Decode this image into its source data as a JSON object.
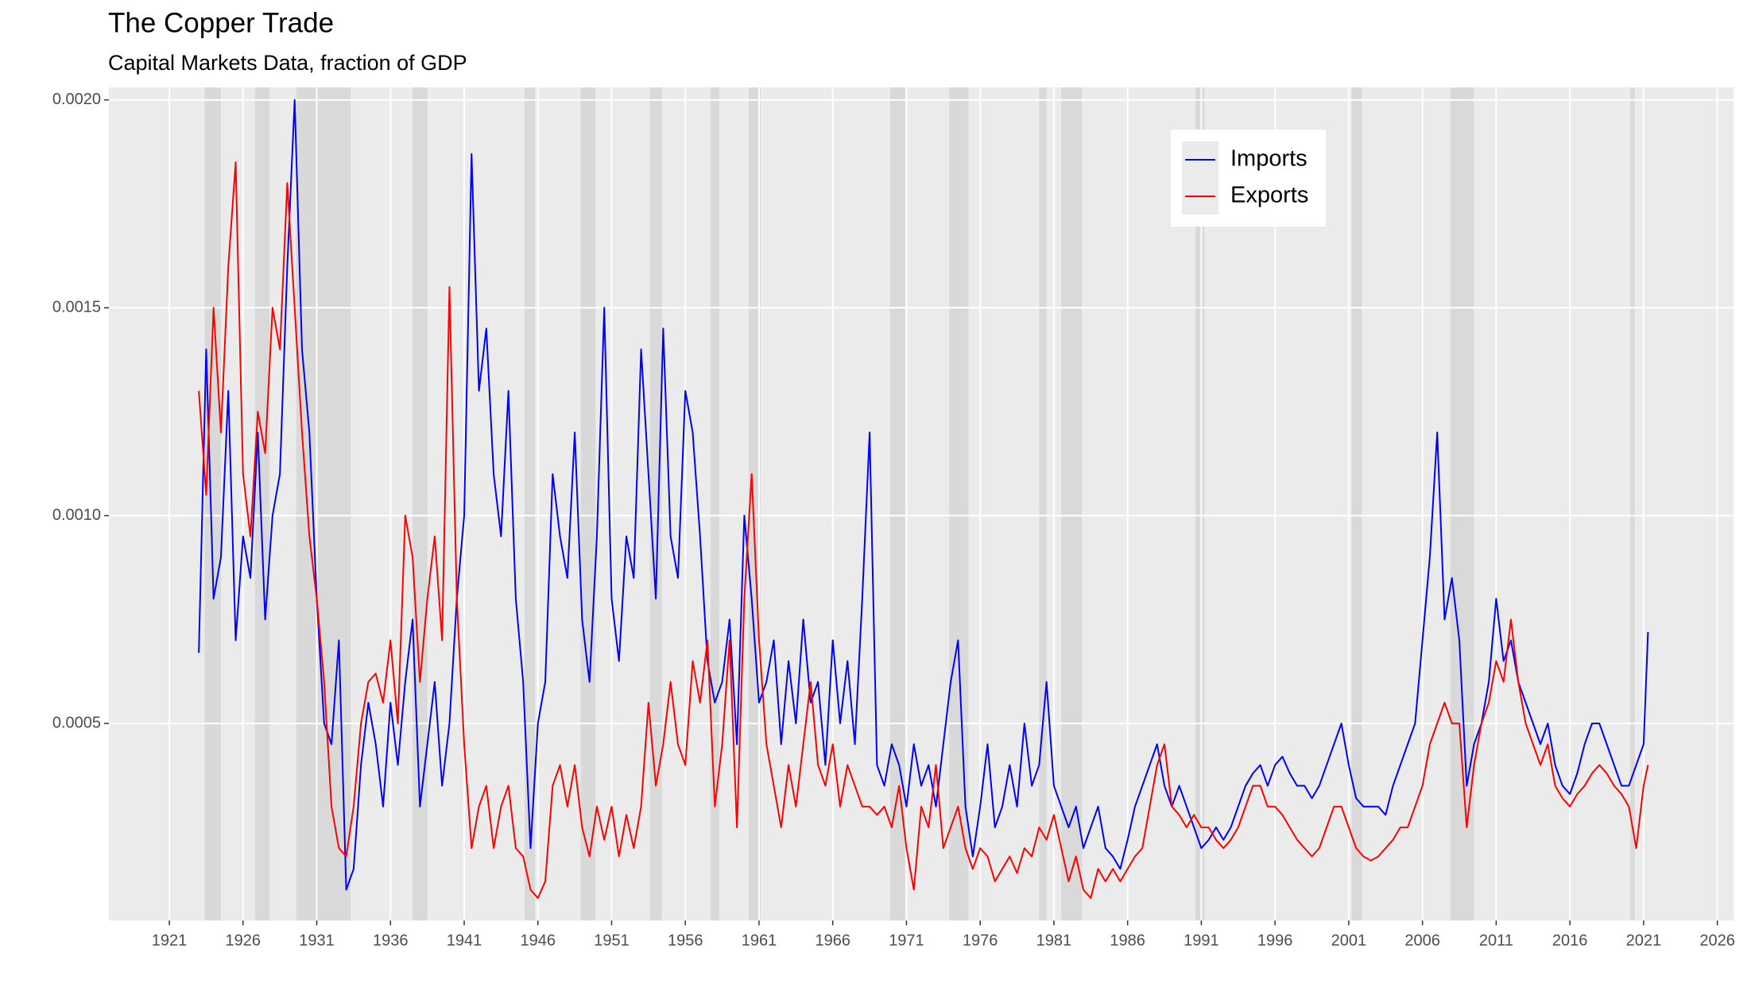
{
  "chart_data": {
    "type": "line",
    "title": "The Copper Trade",
    "subtitle": "Capital Markets Data, fraction of GDP",
    "x": [
      1923.0,
      1923.5,
      1924.0,
      1924.5,
      1925.0,
      1925.5,
      1926.0,
      1926.5,
      1927.0,
      1927.5,
      1928.0,
      1928.5,
      1929.0,
      1929.5,
      1930.0,
      1930.5,
      1931.0,
      1931.5,
      1932.0,
      1932.5,
      1933.0,
      1933.5,
      1934.0,
      1934.5,
      1935.0,
      1935.5,
      1936.0,
      1936.5,
      1937.0,
      1937.5,
      1938.0,
      1938.5,
      1939.0,
      1939.5,
      1940.0,
      1940.5,
      1941.0,
      1941.5,
      1942.0,
      1942.5,
      1943.0,
      1943.5,
      1944.0,
      1944.5,
      1945.0,
      1945.5,
      1946.0,
      1946.5,
      1947.0,
      1947.5,
      1948.0,
      1948.5,
      1949.0,
      1949.5,
      1950.0,
      1950.5,
      1951.0,
      1951.5,
      1952.0,
      1952.5,
      1953.0,
      1953.5,
      1954.0,
      1954.5,
      1955.0,
      1955.5,
      1956.0,
      1956.5,
      1957.0,
      1957.5,
      1958.0,
      1958.5,
      1959.0,
      1959.5,
      1960.0,
      1960.5,
      1961.0,
      1961.5,
      1962.0,
      1962.5,
      1963.0,
      1963.5,
      1964.0,
      1964.5,
      1965.0,
      1965.5,
      1966.0,
      1966.5,
      1967.0,
      1967.5,
      1968.0,
      1968.5,
      1969.0,
      1969.5,
      1970.0,
      1970.5,
      1971.0,
      1971.5,
      1972.0,
      1972.5,
      1973.0,
      1973.5,
      1974.0,
      1974.5,
      1975.0,
      1975.5,
      1976.0,
      1976.5,
      1977.0,
      1977.5,
      1978.0,
      1978.5,
      1979.0,
      1979.5,
      1980.0,
      1980.5,
      1981.0,
      1981.5,
      1982.0,
      1982.5,
      1983.0,
      1983.5,
      1984.0,
      1984.5,
      1985.0,
      1985.5,
      1986.0,
      1986.5,
      1987.0,
      1987.5,
      1988.0,
      1988.5,
      1989.0,
      1989.5,
      1990.0,
      1990.5,
      1991.0,
      1991.5,
      1992.0,
      1992.5,
      1993.0,
      1993.5,
      1994.0,
      1994.5,
      1995.0,
      1995.5,
      1996.0,
      1996.5,
      1997.0,
      1997.5,
      1998.0,
      1998.5,
      1999.0,
      1999.5,
      2000.0,
      2000.5,
      2001.0,
      2001.5,
      2002.0,
      2002.5,
      2003.0,
      2003.5,
      2004.0,
      2004.5,
      2005.0,
      2005.5,
      2006.0,
      2006.5,
      2007.0,
      2007.5,
      2008.0,
      2008.5,
      2009.0,
      2009.5,
      2010.0,
      2010.5,
      2011.0,
      2011.5,
      2012.0,
      2012.5,
      2013.0,
      2013.5,
      2014.0,
      2014.5,
      2015.0,
      2015.5,
      2016.0,
      2016.5,
      2017.0,
      2017.5,
      2018.0,
      2018.5,
      2019.0,
      2019.5,
      2020.0,
      2020.5,
      2021.0,
      2021.3
    ],
    "series": [
      {
        "name": "Imports",
        "color": "#0000ff",
        "values": [
          0.00067,
          0.0014,
          0.0008,
          0.0009,
          0.0013,
          0.0007,
          0.00095,
          0.00085,
          0.0012,
          0.00075,
          0.001,
          0.0011,
          0.0016,
          0.002,
          0.0014,
          0.0012,
          0.0008,
          0.0005,
          0.00045,
          0.0007,
          0.0001,
          0.00015,
          0.0004,
          0.00055,
          0.00045,
          0.0003,
          0.00055,
          0.0004,
          0.0006,
          0.00075,
          0.0003,
          0.00045,
          0.0006,
          0.00035,
          0.0005,
          0.0008,
          0.001,
          0.00187,
          0.0013,
          0.00145,
          0.0011,
          0.00095,
          0.0013,
          0.0008,
          0.0006,
          0.0002,
          0.0005,
          0.0006,
          0.0011,
          0.00095,
          0.00085,
          0.0012,
          0.00075,
          0.0006,
          0.00095,
          0.0015,
          0.0008,
          0.00065,
          0.00095,
          0.00085,
          0.0014,
          0.0011,
          0.0008,
          0.00145,
          0.00095,
          0.00085,
          0.0013,
          0.0012,
          0.00095,
          0.00065,
          0.00055,
          0.0006,
          0.00075,
          0.00045,
          0.001,
          0.0008,
          0.00055,
          0.0006,
          0.0007,
          0.00045,
          0.00065,
          0.0005,
          0.00075,
          0.00055,
          0.0006,
          0.0004,
          0.0007,
          0.0005,
          0.00065,
          0.00045,
          0.0008,
          0.0012,
          0.0004,
          0.00035,
          0.00045,
          0.0004,
          0.0003,
          0.00045,
          0.00035,
          0.0004,
          0.0003,
          0.00045,
          0.0006,
          0.0007,
          0.0003,
          0.00018,
          0.0003,
          0.00045,
          0.00025,
          0.0003,
          0.0004,
          0.0003,
          0.0005,
          0.00035,
          0.0004,
          0.0006,
          0.00035,
          0.0003,
          0.00025,
          0.0003,
          0.0002,
          0.00025,
          0.0003,
          0.0002,
          0.00018,
          0.00015,
          0.00022,
          0.0003,
          0.00035,
          0.0004,
          0.00045,
          0.00035,
          0.0003,
          0.00035,
          0.0003,
          0.00025,
          0.0002,
          0.00022,
          0.00025,
          0.00022,
          0.00025,
          0.0003,
          0.00035,
          0.00038,
          0.0004,
          0.00035,
          0.0004,
          0.00042,
          0.00038,
          0.00035,
          0.00035,
          0.00032,
          0.00035,
          0.0004,
          0.00045,
          0.0005,
          0.0004,
          0.00032,
          0.0003,
          0.0003,
          0.0003,
          0.00028,
          0.00035,
          0.0004,
          0.00045,
          0.0005,
          0.0007,
          0.0009,
          0.0012,
          0.00075,
          0.00085,
          0.0007,
          0.00035,
          0.00045,
          0.0005,
          0.0006,
          0.0008,
          0.00065,
          0.0007,
          0.0006,
          0.00055,
          0.0005,
          0.00045,
          0.0005,
          0.0004,
          0.00035,
          0.00033,
          0.00038,
          0.00045,
          0.0005,
          0.0005,
          0.00045,
          0.0004,
          0.00035,
          0.00035,
          0.0004,
          0.00045,
          0.00072
        ]
      },
      {
        "name": "Exports",
        "color": "#ff0000",
        "values": [
          0.0013,
          0.00105,
          0.0015,
          0.0012,
          0.0016,
          0.00185,
          0.0011,
          0.00095,
          0.00125,
          0.00115,
          0.0015,
          0.0014,
          0.0018,
          0.0015,
          0.0012,
          0.00095,
          0.0008,
          0.0006,
          0.0003,
          0.0002,
          0.00018,
          0.0003,
          0.0005,
          0.0006,
          0.00062,
          0.00055,
          0.0007,
          0.0005,
          0.001,
          0.0009,
          0.0006,
          0.0008,
          0.00095,
          0.0007,
          0.00155,
          0.0008,
          0.00045,
          0.0002,
          0.0003,
          0.00035,
          0.0002,
          0.0003,
          0.00035,
          0.0002,
          0.00018,
          0.0001,
          8e-05,
          0.00012,
          0.00035,
          0.0004,
          0.0003,
          0.0004,
          0.00025,
          0.00018,
          0.0003,
          0.00022,
          0.0003,
          0.00018,
          0.00028,
          0.0002,
          0.0003,
          0.00055,
          0.00035,
          0.00045,
          0.0006,
          0.00045,
          0.0004,
          0.00065,
          0.00055,
          0.0007,
          0.0003,
          0.00045,
          0.0007,
          0.00025,
          0.0008,
          0.0011,
          0.0007,
          0.00045,
          0.00035,
          0.00025,
          0.0004,
          0.0003,
          0.00045,
          0.0006,
          0.0004,
          0.00035,
          0.00045,
          0.0003,
          0.0004,
          0.00035,
          0.0003,
          0.0003,
          0.00028,
          0.0003,
          0.00025,
          0.00035,
          0.0002,
          0.0001,
          0.0003,
          0.00025,
          0.0004,
          0.0002,
          0.00025,
          0.0003,
          0.0002,
          0.00015,
          0.0002,
          0.00018,
          0.00012,
          0.00015,
          0.00018,
          0.00014,
          0.0002,
          0.00018,
          0.00025,
          0.00022,
          0.00028,
          0.0002,
          0.00012,
          0.00018,
          0.0001,
          8e-05,
          0.00015,
          0.00012,
          0.00015,
          0.00012,
          0.00015,
          0.00018,
          0.0002,
          0.0003,
          0.0004,
          0.00045,
          0.0003,
          0.00028,
          0.00025,
          0.00028,
          0.00025,
          0.00025,
          0.00022,
          0.0002,
          0.00022,
          0.00025,
          0.0003,
          0.00035,
          0.00035,
          0.0003,
          0.0003,
          0.00028,
          0.00025,
          0.00022,
          0.0002,
          0.00018,
          0.0002,
          0.00025,
          0.0003,
          0.0003,
          0.00025,
          0.0002,
          0.00018,
          0.00017,
          0.00018,
          0.0002,
          0.00022,
          0.00025,
          0.00025,
          0.0003,
          0.00035,
          0.00045,
          0.0005,
          0.00055,
          0.0005,
          0.0005,
          0.00025,
          0.0004,
          0.0005,
          0.00055,
          0.00065,
          0.0006,
          0.00075,
          0.0006,
          0.0005,
          0.00045,
          0.0004,
          0.00045,
          0.00035,
          0.00032,
          0.0003,
          0.00033,
          0.00035,
          0.00038,
          0.0004,
          0.00038,
          0.00035,
          0.00033,
          0.0003,
          0.0002,
          0.00035,
          0.0004
        ]
      }
    ],
    "shaded_periods": [
      [
        1923.4,
        1924.5
      ],
      [
        1926.8,
        1927.8
      ],
      [
        1929.6,
        1933.3
      ],
      [
        1937.5,
        1938.5
      ],
      [
        1945.1,
        1945.8
      ],
      [
        1948.9,
        1949.9
      ],
      [
        1953.6,
        1954.4
      ],
      [
        1957.7,
        1958.3
      ],
      [
        1960.3,
        1961.1
      ],
      [
        1969.9,
        1970.9
      ],
      [
        1973.9,
        1975.2
      ],
      [
        1980.0,
        1980.5
      ],
      [
        1981.5,
        1982.9
      ],
      [
        1990.6,
        1991.2
      ],
      [
        2001.2,
        2001.9
      ],
      [
        2007.9,
        2009.5
      ],
      [
        2020.1,
        2020.4
      ]
    ],
    "xlim": [
      1916.9,
      2027.1
    ],
    "ylim": [
      2.6e-05,
      0.00203
    ],
    "xticks": [
      1921,
      1926,
      1931,
      1936,
      1941,
      1946,
      1951,
      1956,
      1961,
      1966,
      1971,
      1976,
      1981,
      1986,
      1991,
      1996,
      2001,
      2006,
      2011,
      2016,
      2021,
      2026
    ],
    "yticks": [
      0.0005,
      {
        "value": 0.001,
        "label": "0.0010"
      },
      0.0015,
      {
        "value": 0.002,
        "label": "0.0020"
      }
    ],
    "grid": true,
    "legend_position": "top-right"
  }
}
